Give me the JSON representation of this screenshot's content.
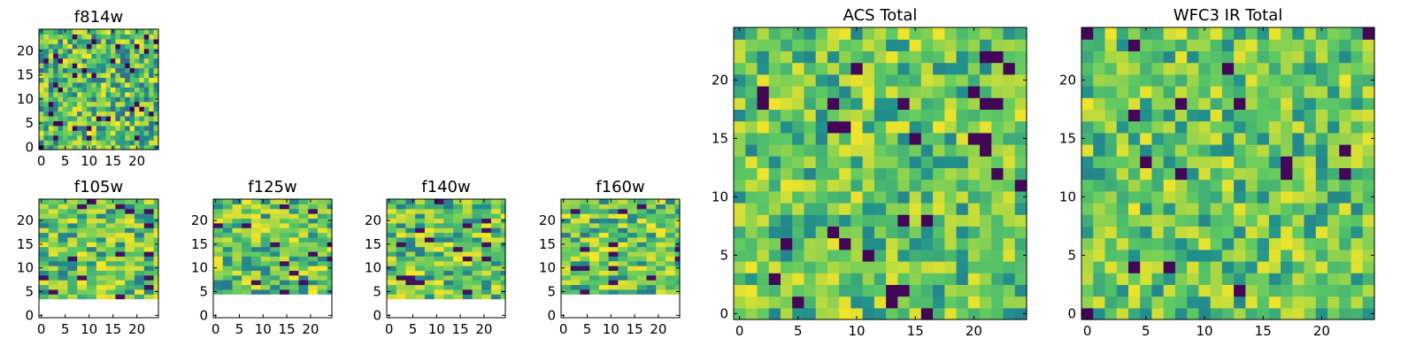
{
  "figure": {
    "cols": 25,
    "rows": 25,
    "seed": 7
  },
  "chart_data": [
    {
      "type": "heatmap",
      "id": "f814w",
      "title": "f814w",
      "xlim": [
        0,
        25
      ],
      "ylim": [
        0,
        25
      ],
      "xticks": [
        0,
        5,
        10,
        15,
        20
      ],
      "yticks": [
        0,
        5,
        10,
        15,
        20
      ],
      "empty_rows_bottom": 0,
      "variant": "noisy"
    },
    {
      "type": "heatmap",
      "id": "f105w",
      "title": "f105w",
      "xlim": [
        0,
        25
      ],
      "ylim": [
        0,
        25
      ],
      "xticks": [
        0,
        5,
        10,
        15,
        20
      ],
      "yticks": [
        0,
        5,
        10,
        15,
        20
      ],
      "empty_rows_bottom": 4,
      "variant": "blocky"
    },
    {
      "type": "heatmap",
      "id": "f125w",
      "title": "f125w",
      "xlim": [
        0,
        25
      ],
      "ylim": [
        0,
        25
      ],
      "xticks": [
        0,
        5,
        10,
        15,
        20
      ],
      "yticks": [
        0,
        5,
        10,
        15,
        20
      ],
      "empty_rows_bottom": 5,
      "variant": "blocky"
    },
    {
      "type": "heatmap",
      "id": "f140w",
      "title": "f140w",
      "xlim": [
        0,
        25
      ],
      "ylim": [
        0,
        25
      ],
      "xticks": [
        0,
        5,
        10,
        15,
        20
      ],
      "yticks": [
        0,
        5,
        10,
        15,
        20
      ],
      "empty_rows_bottom": 4,
      "variant": "blocky"
    },
    {
      "type": "heatmap",
      "id": "f160w",
      "title": "f160w",
      "xlim": [
        0,
        25
      ],
      "ylim": [
        0,
        25
      ],
      "xticks": [
        0,
        5,
        10,
        15,
        20
      ],
      "yticks": [
        0,
        5,
        10,
        15,
        20
      ],
      "empty_rows_bottom": 5,
      "variant": "blocky"
    },
    {
      "type": "heatmap",
      "id": "acs-total",
      "title": "ACS Total",
      "xlim": [
        0,
        25
      ],
      "ylim": [
        0,
        25
      ],
      "xticks": [
        0,
        5,
        10,
        15,
        20
      ],
      "yticks": [
        0,
        5,
        10,
        15,
        20
      ],
      "empty_rows_bottom": 0,
      "variant": "smooth"
    },
    {
      "type": "heatmap",
      "id": "wfc3-ir-total",
      "title": "WFC3 IR Total",
      "xlim": [
        0,
        25
      ],
      "ylim": [
        0,
        25
      ],
      "xticks": [
        0,
        5,
        10,
        15,
        20
      ],
      "yticks": [
        0,
        5,
        10,
        15,
        20
      ],
      "empty_rows_bottom": 0,
      "variant": "smooth"
    }
  ],
  "colormap": [
    "#440154",
    "#3b528b",
    "#21918c",
    "#5ec962",
    "#fde725"
  ]
}
